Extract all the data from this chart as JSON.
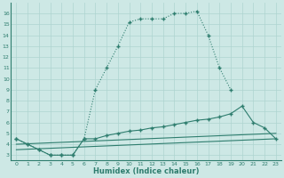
{
  "line1_x": [
    0,
    1,
    2,
    3,
    4,
    5,
    6,
    7,
    8,
    9,
    10,
    11,
    12,
    13,
    14,
    15,
    16,
    17,
    18,
    19
  ],
  "line1_y": [
    4.5,
    4.0,
    3.5,
    3.0,
    3.0,
    3.0,
    4.5,
    9.0,
    11.0,
    13.0,
    15.2,
    15.5,
    15.5,
    15.5,
    16.0,
    16.0,
    16.2,
    14.0,
    11.0,
    9.0
  ],
  "line2_x": [
    0,
    1,
    2,
    3,
    4,
    5,
    6,
    7,
    8,
    9,
    10,
    11,
    12,
    13,
    14,
    15,
    16,
    17,
    18,
    19,
    20,
    21,
    22,
    23
  ],
  "line2_y": [
    4.5,
    4.0,
    3.5,
    3.0,
    3.0,
    3.0,
    4.5,
    4.5,
    4.8,
    5.0,
    5.2,
    5.3,
    5.5,
    5.6,
    5.8,
    6.0,
    6.2,
    6.3,
    6.5,
    6.8,
    7.5,
    6.0,
    5.5,
    4.5
  ],
  "line3_x": [
    0,
    23
  ],
  "line3_y": [
    3.5,
    4.5
  ],
  "line4_x": [
    0,
    23
  ],
  "line4_y": [
    4.0,
    5.0
  ],
  "color": "#2e7d6e",
  "bg_color": "#cde8e5",
  "grid_color": "#aed4d0",
  "xlabel": "Humidex (Indice chaleur)",
  "ylim": [
    2.5,
    17.0
  ],
  "xlim": [
    -0.5,
    23.5
  ],
  "yticks": [
    3,
    4,
    5,
    6,
    7,
    8,
    9,
    10,
    11,
    12,
    13,
    14,
    15,
    16
  ],
  "xticks": [
    0,
    1,
    2,
    3,
    4,
    5,
    6,
    7,
    8,
    9,
    10,
    11,
    12,
    13,
    14,
    15,
    16,
    17,
    18,
    19,
    20,
    21,
    22,
    23
  ]
}
